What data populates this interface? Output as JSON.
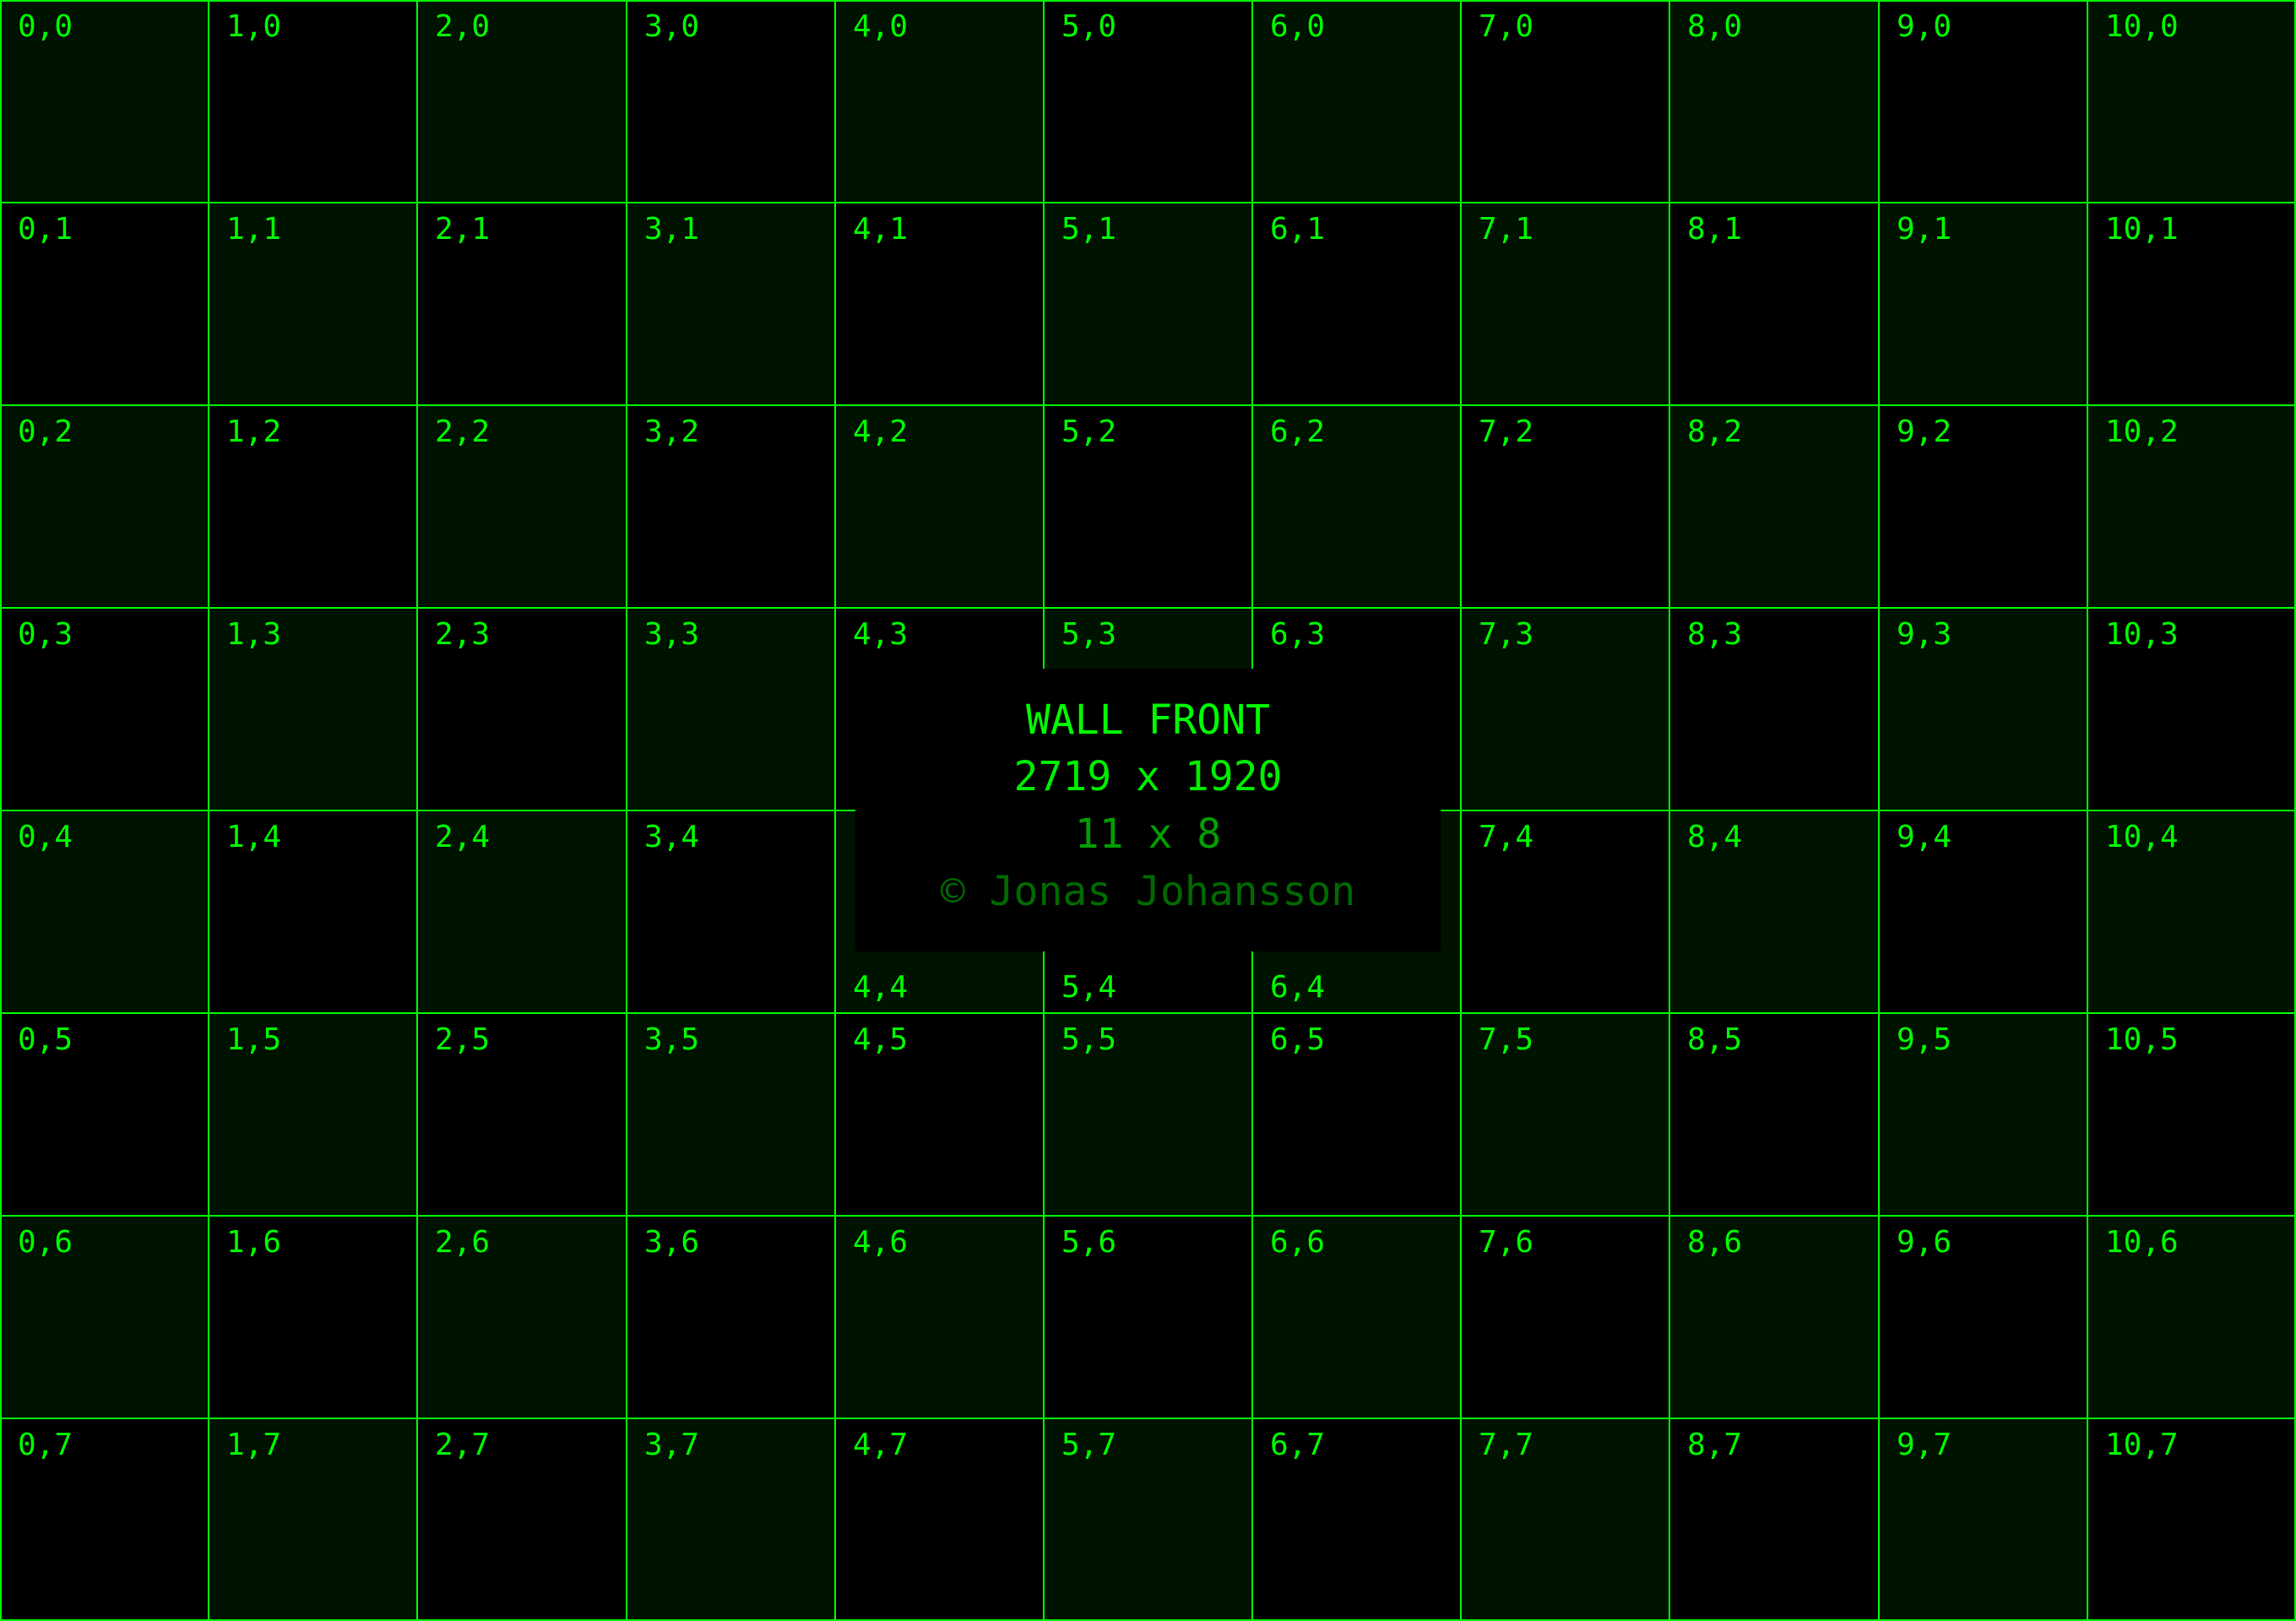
{
  "title": "WALL FRONT",
  "resolution": "2719 x 1920",
  "grid_size": "11 x 8",
  "copyright": "© Jonas Johansson",
  "grid": {
    "columns": 11,
    "rows": 8
  },
  "colors": {
    "line": "#00ff00",
    "cell_dark": "#001200",
    "cell_black": "#000000",
    "text": "#00ff00"
  },
  "cell_labels": [
    [
      "0,0",
      "1,0",
      "2,0",
      "3,0",
      "4,0",
      "5,0",
      "6,0",
      "7,0",
      "8,0",
      "9,0",
      "10,0"
    ],
    [
      "0,1",
      "1,1",
      "2,1",
      "3,1",
      "4,1",
      "5,1",
      "6,1",
      "7,1",
      "8,1",
      "9,1",
      "10,1"
    ],
    [
      "0,2",
      "1,2",
      "2,2",
      "3,2",
      "4,2",
      "5,2",
      "6,2",
      "7,2",
      "8,2",
      "9,2",
      "10,2"
    ],
    [
      "0,3",
      "1,3",
      "2,3",
      "3,3",
      "4,3",
      "5,3",
      "6,3",
      "7,3",
      "8,3",
      "9,3",
      "10,3"
    ],
    [
      "0,4",
      "1,4",
      "2,4",
      "3,4",
      "4,4",
      "5,4",
      "6,4",
      "7,4",
      "8,4",
      "9,4",
      "10,4"
    ],
    [
      "0,5",
      "1,5",
      "2,5",
      "3,5",
      "4,5",
      "5,5",
      "6,5",
      "7,5",
      "8,5",
      "9,5",
      "10,5"
    ],
    [
      "0,6",
      "1,6",
      "2,6",
      "3,6",
      "4,6",
      "5,6",
      "6,6",
      "7,6",
      "8,6",
      "9,6",
      "10,6"
    ],
    [
      "0,7",
      "1,7",
      "2,7",
      "3,7",
      "4,7",
      "5,7",
      "6,7",
      "7,7",
      "8,7",
      "9,7",
      "10,7"
    ]
  ]
}
